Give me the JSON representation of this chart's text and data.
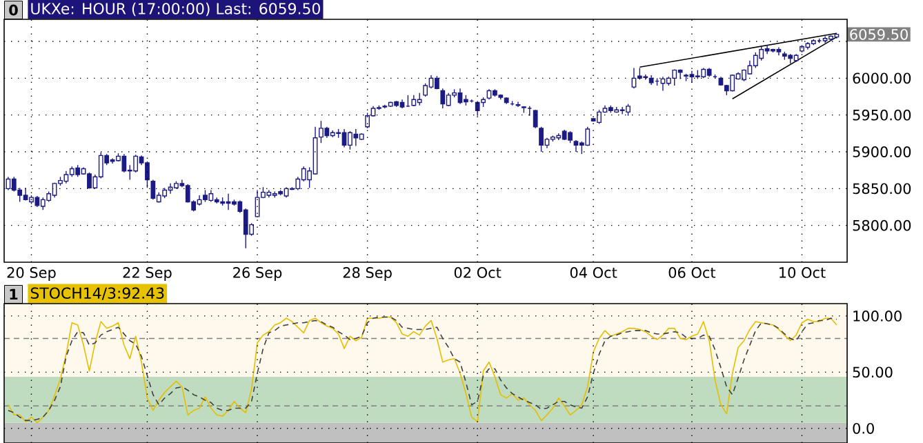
{
  "chart_data": [
    {
      "type": "candlestick",
      "title": "UKXe: HOUR (17:00:00) Last: 6059.50",
      "color": "#1c1a84",
      "grid": true,
      "categories": [
        null,
        null,
        null,
        null,
        "20 Sep",
        null,
        null,
        null,
        null,
        null,
        null,
        null,
        null,
        null,
        null,
        null,
        null,
        null,
        null,
        null,
        null,
        null,
        null,
        null,
        "22 Sep",
        null,
        null,
        null,
        null,
        null,
        null,
        null,
        null,
        null,
        null,
        null,
        null,
        null,
        null,
        null,
        null,
        null,
        null,
        "26 Sep",
        null,
        null,
        null,
        null,
        null,
        null,
        null,
        null,
        null,
        null,
        null,
        null,
        null,
        null,
        null,
        null,
        null,
        null,
        "28 Sep",
        null,
        null,
        null,
        null,
        null,
        null,
        null,
        null,
        null,
        null,
        null,
        null,
        null,
        null,
        null,
        null,
        null,
        null,
        "02 Oct",
        null,
        null,
        null,
        null,
        null,
        null,
        null,
        null,
        null,
        null,
        null,
        null,
        null,
        null,
        null,
        null,
        null,
        null,
        null,
        "04 Oct",
        null,
        null,
        null,
        null,
        null,
        null,
        null,
        null,
        null,
        null,
        null,
        null,
        null,
        null,
        null,
        null,
        "06 Oct",
        null,
        null,
        null,
        null,
        null,
        null,
        null,
        null,
        null,
        null,
        null,
        null,
        null,
        null,
        null,
        null,
        null,
        null,
        "10 Oct",
        null,
        null,
        null,
        null,
        null,
        null
      ],
      "ohlc": [
        [
          5850,
          5866,
          5848,
          5863
        ],
        [
          5863,
          5866,
          5846,
          5848
        ],
        [
          5848,
          5851,
          5832,
          5841
        ],
        [
          5841,
          5851,
          5834,
          5835
        ],
        [
          5832,
          5841,
          5829,
          5838
        ],
        [
          5838,
          5840,
          5825,
          5827
        ],
        [
          5826,
          5838,
          5821,
          5835
        ],
        [
          5834,
          5846,
          5832,
          5843
        ],
        [
          5841,
          5858,
          5838,
          5857
        ],
        [
          5857,
          5866,
          5854,
          5861
        ],
        [
          5860,
          5874,
          5857,
          5869
        ],
        [
          5869,
          5880,
          5866,
          5877
        ],
        [
          5878,
          5882,
          5866,
          5869
        ],
        [
          5870,
          5879,
          5869,
          5877
        ],
        [
          5870,
          5872,
          5850,
          5851
        ],
        [
          5851,
          5869,
          5850,
          5866
        ],
        [
          5866,
          5899,
          5864,
          5895
        ],
        [
          5895,
          5897,
          5882,
          5885
        ],
        [
          5889,
          5891,
          5884,
          5887
        ],
        [
          5888,
          5898,
          5887,
          5894
        ],
        [
          5894,
          5897,
          5872,
          5874
        ],
        [
          5875,
          5882,
          5862,
          5874
        ],
        [
          5874,
          5896,
          5872,
          5894
        ],
        [
          5893,
          5895,
          5882,
          5885
        ],
        [
          5885,
          5887,
          5851,
          5862
        ],
        [
          5860,
          5862,
          5835,
          5837
        ],
        [
          5832,
          5845,
          5831,
          5841
        ],
        [
          5840,
          5851,
          5837,
          5848
        ],
        [
          5848,
          5857,
          5843,
          5852
        ],
        [
          5851,
          5860,
          5850,
          5857
        ],
        [
          5857,
          5862,
          5852,
          5854
        ],
        [
          5854,
          5856,
          5831,
          5832
        ],
        [
          5832,
          5834,
          5819,
          5821
        ],
        [
          5829,
          5841,
          5827,
          5835
        ],
        [
          5841,
          5848,
          5832,
          5835
        ],
        [
          5834,
          5848,
          5832,
          5843
        ],
        [
          5835,
          5838,
          5830,
          5832
        ],
        [
          5832,
          5838,
          5827,
          5830
        ],
        [
          5832,
          5843,
          5821,
          5830
        ],
        [
          5832,
          5835,
          5827,
          5829
        ],
        [
          5832,
          5834,
          5817,
          5819
        ],
        [
          5821,
          5823,
          5769,
          5788
        ],
        [
          5788,
          5803,
          5786,
          5801
        ],
        [
          5812,
          5848,
          5811,
          5838
        ],
        [
          5838,
          5852,
          5837,
          5845
        ],
        [
          5841,
          5848,
          5838,
          5845
        ],
        [
          5841,
          5846,
          5838,
          5843
        ],
        [
          5846,
          5848,
          5841,
          5843
        ],
        [
          5840,
          5852,
          5838,
          5850
        ],
        [
          5850,
          5852,
          5848,
          5849
        ],
        [
          5850,
          5866,
          5848,
          5863
        ],
        [
          5862,
          5880,
          5860,
          5877
        ],
        [
          5862,
          5879,
          5851,
          5874
        ],
        [
          5870,
          5934,
          5869,
          5919
        ],
        [
          5920,
          5942,
          5912,
          5932
        ],
        [
          5932,
          5934,
          5919,
          5922
        ],
        [
          5922,
          5929,
          5920,
          5926
        ],
        [
          5925,
          5931,
          5919,
          5926
        ],
        [
          5926,
          5931,
          5906,
          5909
        ],
        [
          5909,
          5928,
          5903,
          5926
        ],
        [
          5924,
          5931,
          5908,
          5919
        ],
        [
          5917,
          5925,
          5916,
          5924
        ],
        [
          5934,
          5953,
          5932,
          5949
        ],
        [
          5949,
          5962,
          5948,
          5959
        ],
        [
          5959,
          5963,
          5957,
          5960
        ],
        [
          5961,
          5964,
          5959,
          5962
        ],
        [
          5962,
          5968,
          5961,
          5967
        ],
        [
          5968,
          5969,
          5961,
          5963
        ],
        [
          5967,
          5971,
          5959,
          5961
        ],
        [
          5962,
          5977,
          5961,
          5962
        ],
        [
          5963,
          5977,
          5962,
          5971
        ],
        [
          5967,
          5980,
          5963,
          5971
        ],
        [
          5977,
          5993,
          5975,
          5990
        ],
        [
          5988,
          6004,
          5986,
          6000
        ],
        [
          6000,
          6003,
          5985,
          5986
        ],
        [
          5983,
          5986,
          5959,
          5965
        ],
        [
          5963,
          5980,
          5962,
          5977
        ],
        [
          5977,
          5985,
          5974,
          5980
        ],
        [
          5980,
          5986,
          5965,
          5967
        ],
        [
          5971,
          5977,
          5963,
          5968
        ],
        [
          5969,
          5971,
          5967,
          5969
        ],
        [
          5967,
          5969,
          5949,
          5956
        ],
        [
          5967,
          5974,
          5961,
          5971
        ],
        [
          5973,
          5985,
          5971,
          5983
        ],
        [
          5983,
          5985,
          5975,
          5977
        ],
        [
          5977,
          5978,
          5971,
          5974
        ],
        [
          5973,
          5974,
          5965,
          5967
        ],
        [
          5965,
          5969,
          5963,
          5965
        ],
        [
          5964,
          5968,
          5961,
          5963
        ],
        [
          5961,
          5962,
          5953,
          5960
        ],
        [
          5959,
          5962,
          5949,
          5959
        ],
        [
          5956,
          5957,
          5932,
          5934
        ],
        [
          5932,
          5934,
          5900,
          5909
        ],
        [
          5909,
          5919,
          5905,
          5917
        ],
        [
          5917,
          5922,
          5914,
          5920
        ],
        [
          5919,
          5925,
          5916,
          5922
        ],
        [
          5928,
          5930,
          5916,
          5917
        ],
        [
          5926,
          5928,
          5912,
          5916
        ],
        [
          5914,
          5916,
          5900,
          5909
        ],
        [
          5912,
          5914,
          5897,
          5909
        ],
        [
          5909,
          5934,
          5908,
          5931
        ],
        [
          5945,
          5946,
          5941,
          5942
        ],
        [
          5940,
          5957,
          5938,
          5954
        ],
        [
          5954,
          5963,
          5953,
          5959
        ],
        [
          5960,
          5963,
          5953,
          5956
        ],
        [
          5954,
          5961,
          5953,
          5957
        ],
        [
          5957,
          5961,
          5951,
          5956
        ],
        [
          5954,
          5965,
          5949,
          5962
        ],
        [
          5988,
          6014,
          5986,
          6000
        ],
        [
          6003,
          6014,
          5998,
          6000
        ],
        [
          6002,
          6005,
          5998,
          6001
        ],
        [
          6000,
          6004,
          5991,
          5994
        ],
        [
          5996,
          6000,
          5990,
          5996
        ],
        [
          5993,
          6002,
          5983,
          5999
        ],
        [
          5993,
          6002,
          5990,
          6000
        ],
        [
          6000,
          6012,
          5990,
          6011
        ],
        [
          6011,
          6012,
          5999,
          6008
        ],
        [
          6004,
          6006,
          5996,
          6003
        ],
        [
          6005,
          6010,
          5994,
          6002
        ],
        [
          6003,
          6011,
          5999,
          6002
        ],
        [
          6002,
          6014,
          6000,
          6012
        ],
        [
          6012,
          6014,
          6002,
          6004
        ],
        [
          6002,
          6005,
          6000,
          6002
        ],
        [
          6000,
          6002,
          5990,
          5991
        ],
        [
          5990,
          5991,
          5977,
          5983
        ],
        [
          5983,
          6005,
          5982,
          6004
        ],
        [
          5999,
          6008,
          5998,
          6006
        ],
        [
          5998,
          6012,
          5996,
          6011
        ],
        [
          6006,
          6024,
          6005,
          6017
        ],
        [
          6017,
          6035,
          6014,
          6031
        ],
        [
          6027,
          6043,
          6024,
          6039
        ],
        [
          6040,
          6045,
          6033,
          6037
        ],
        [
          6039,
          6040,
          6035,
          6037
        ],
        [
          6039,
          6042,
          6031,
          6036
        ],
        [
          6033,
          6036,
          6025,
          6030
        ],
        [
          6031,
          6033,
          6020,
          6027
        ],
        [
          6024,
          6033,
          6022,
          6031
        ],
        [
          6037,
          6045,
          6035,
          6043
        ],
        [
          6042,
          6049,
          6039,
          6047
        ],
        [
          6047,
          6053,
          6045,
          6051
        ],
        [
          6051,
          6054,
          6048,
          6051
        ],
        [
          6051,
          6057,
          6048,
          6054
        ],
        [
          6053,
          6058,
          6051,
          6057
        ],
        [
          6056,
          6060,
          6054,
          6059.5
        ]
      ],
      "series": [
        {
          "type": "line",
          "color": "#000000",
          "values": [
            null,
            null,
            null,
            null,
            null,
            null,
            null,
            null,
            null,
            null,
            null,
            null,
            null,
            null,
            null,
            null,
            null,
            null,
            null,
            null,
            null,
            null,
            null,
            null,
            null,
            null,
            null,
            null,
            null,
            null,
            null,
            null,
            null,
            null,
            null,
            null,
            null,
            null,
            null,
            null,
            null,
            null,
            null,
            null,
            null,
            null,
            null,
            null,
            null,
            null,
            null,
            null,
            null,
            null,
            null,
            null,
            null,
            null,
            null,
            null,
            null,
            null,
            null,
            null,
            null,
            null,
            null,
            null,
            null,
            null,
            null,
            null,
            null,
            null,
            null,
            null,
            null,
            null,
            null,
            null,
            null,
            null,
            null,
            null,
            null,
            null,
            null,
            null,
            null,
            null,
            null,
            null,
            null,
            null,
            null,
            null,
            null,
            null,
            null,
            null,
            null,
            null,
            null,
            null,
            null,
            null,
            null,
            null,
            null,
            6015,
            null,
            null,
            null,
            null,
            null,
            null,
            null,
            null,
            null,
            null,
            null,
            null,
            null,
            null,
            null,
            null,
            null,
            null,
            null,
            null,
            null,
            null,
            null,
            null,
            null,
            null,
            null,
            null,
            null,
            null,
            null,
            null,
            null,
            6061
          ]
        },
        {
          "type": "line",
          "color": "#000000",
          "values": [
            null,
            null,
            null,
            null,
            null,
            null,
            null,
            null,
            null,
            null,
            null,
            null,
            null,
            null,
            null,
            null,
            null,
            null,
            null,
            null,
            null,
            null,
            null,
            null,
            null,
            null,
            null,
            null,
            null,
            null,
            null,
            null,
            null,
            null,
            null,
            null,
            null,
            null,
            null,
            null,
            null,
            null,
            null,
            null,
            null,
            null,
            null,
            null,
            null,
            null,
            null,
            null,
            null,
            null,
            null,
            null,
            null,
            null,
            null,
            null,
            null,
            null,
            null,
            null,
            null,
            null,
            null,
            null,
            null,
            null,
            null,
            null,
            null,
            null,
            null,
            null,
            null,
            null,
            null,
            null,
            null,
            null,
            null,
            null,
            null,
            null,
            null,
            null,
            null,
            null,
            null,
            null,
            null,
            null,
            null,
            null,
            null,
            null,
            null,
            null,
            null,
            null,
            null,
            null,
            null,
            null,
            null,
            null,
            null,
            null,
            null,
            null,
            null,
            null,
            null,
            null,
            null,
            null,
            null,
            null,
            null,
            null,
            null,
            null,
            null,
            5972,
            null,
            null,
            null,
            null,
            null,
            null,
            null,
            null,
            null,
            null,
            null,
            null,
            null,
            null,
            null,
            null,
            null,
            6056
          ]
        }
      ],
      "ylim": [
        5750,
        6080
      ],
      "yticks": [
        {
          "value": 5800,
          "label": "5800.00"
        },
        {
          "value": 5850,
          "label": "5850.00"
        },
        {
          "value": 5900,
          "label": "5900.00"
        },
        {
          "value": 5950,
          "label": "5950.00"
        },
        {
          "value": 6000,
          "label": "6000.00"
        },
        {
          "value": 6050,
          "label": null
        }
      ],
      "annotations": [
        "0",
        "6059.50"
      ]
    },
    {
      "type": "line",
      "title": "STOCH14/3:92.43",
      "grid": true,
      "tick_labels": "y",
      "categories": [
        null,
        null,
        null,
        null,
        null,
        null,
        null,
        null,
        null,
        null,
        null,
        null,
        null,
        null,
        null,
        null,
        null,
        null,
        null,
        null,
        null,
        null,
        null,
        null,
        null,
        null,
        null,
        null,
        null,
        null,
        null,
        null,
        null,
        null,
        null,
        null,
        null,
        null,
        null,
        null,
        null,
        null,
        null,
        null,
        null,
        null,
        null,
        null,
        null,
        null,
        null,
        null,
        null,
        null,
        null,
        null,
        null,
        null,
        null,
        null,
        null,
        null,
        null,
        null,
        null,
        null,
        null,
        null,
        null,
        null,
        null,
        null,
        null,
        null,
        null,
        null,
        null,
        null,
        null,
        null,
        null,
        null,
        null,
        null,
        null,
        null,
        null,
        null,
        null,
        null,
        null,
        null,
        null,
        null,
        null,
        null,
        null,
        null,
        null,
        null,
        null,
        null,
        null,
        null,
        null,
        null,
        null,
        null,
        null,
        null,
        null,
        null,
        null,
        null,
        null,
        null,
        null,
        null,
        null,
        null,
        null,
        null,
        null,
        null,
        null,
        null,
        null,
        null,
        null,
        null,
        null,
        null,
        null,
        null,
        null,
        null,
        null,
        null,
        null,
        null,
        null,
        null,
        null,
        null
      ],
      "series": [
        {
          "color": "#e6be00",
          "values": [
            21,
            12,
            12,
            6,
            10,
            5,
            10,
            16,
            29,
            44,
            66,
            94,
            92,
            74,
            51,
            76,
            95,
            89,
            91,
            94,
            74,
            62,
            82,
            59,
            27,
            16,
            25,
            32,
            37,
            42,
            37,
            12,
            16,
            18,
            28,
            18,
            12,
            11,
            16,
            24,
            18,
            14,
            35,
            76,
            83,
            86,
            92,
            94,
            98,
            95,
            90,
            85,
            96,
            98,
            94,
            91,
            89,
            84,
            71,
            82,
            78,
            81,
            98,
            98,
            98,
            99,
            99,
            94,
            84,
            82,
            86,
            83,
            91,
            96,
            80,
            59,
            61,
            62,
            49,
            31,
            10,
            6,
            51,
            59,
            46,
            30,
            27,
            31,
            25,
            27,
            21,
            16,
            7,
            12,
            18,
            27,
            20,
            12,
            16,
            21,
            37,
            68,
            80,
            87,
            82,
            84,
            86,
            89,
            89,
            88,
            86,
            82,
            79,
            83,
            89,
            89,
            80,
            79,
            82,
            84,
            95,
            78,
            43,
            21,
            13,
            49,
            72,
            78,
            88,
            95,
            94,
            93,
            92,
            88,
            83,
            78,
            83,
            94,
            97,
            95,
            95,
            98,
            98,
            92
          ]
        },
        {
          "color": "#404040",
          "line_style": "dashed",
          "values": [
            16,
            14,
            10,
            7,
            7,
            8,
            10,
            16,
            25,
            37,
            64,
            78,
            86,
            85,
            74,
            76,
            83,
            86,
            88,
            90,
            84,
            78,
            75,
            64,
            47,
            30,
            21,
            27,
            31,
            36,
            37,
            34,
            30,
            28,
            25,
            23,
            18,
            16,
            16,
            18,
            18,
            18,
            24,
            49,
            71,
            85,
            87,
            91,
            92,
            93,
            94,
            94,
            95,
            96,
            95,
            92,
            90,
            86,
            83,
            79,
            80,
            82,
            94,
            98,
            99,
            99,
            99,
            96,
            90,
            89,
            88,
            88,
            88,
            89,
            90,
            80,
            72,
            62,
            59,
            41,
            21,
            24,
            47,
            53,
            53,
            43,
            36,
            31,
            28,
            25,
            23,
            21,
            17,
            18,
            21,
            24,
            24,
            21,
            19,
            18,
            28,
            49,
            66,
            78,
            82,
            83,
            85,
            86,
            87,
            87,
            87,
            85,
            84,
            84,
            85,
            86,
            85,
            81,
            80,
            80,
            83,
            82,
            70,
            54,
            37,
            30,
            45,
            61,
            74,
            87,
            94,
            93,
            92,
            89,
            84,
            80,
            78,
            86,
            93,
            94,
            96,
            96,
            98,
            97
          ]
        }
      ],
      "ylim": [
        -13,
        111
      ],
      "yticks": [
        {
          "value": 0,
          "label": "0.0"
        },
        {
          "value": 50,
          "label": "50.00"
        },
        {
          "value": 100,
          "label": "100.00"
        }
      ],
      "bands": [
        {
          "axis": "y",
          "from": -13,
          "to": 5,
          "color": "#c0c0c0"
        },
        {
          "axis": "y",
          "from": 5,
          "to": 46,
          "color": "#c0dcc0"
        },
        {
          "axis": "y",
          "from": 46,
          "to": 111,
          "color": "#fff8ec"
        }
      ],
      "ref_lines": [
        {
          "axis": "y",
          "value": 80,
          "color": "#808080",
          "line_style": "dashed"
        },
        {
          "axis": "y",
          "value": 20,
          "color": "#808080",
          "line_style": "dashed"
        }
      ],
      "annotations": [
        "1"
      ]
    }
  ]
}
